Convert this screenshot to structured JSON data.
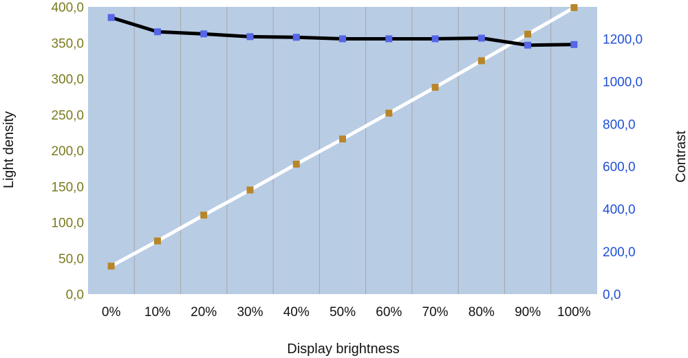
{
  "chart_data": {
    "type": "line",
    "xlabel": "Display brightness",
    "ylabel_left": "Light density",
    "ylabel_right": "Contrast",
    "categories": [
      "0%",
      "10%",
      "20%",
      "30%",
      "40%",
      "50%",
      "60%",
      "70%",
      "80%",
      "90%",
      "100%"
    ],
    "ylim_left": [
      0,
      400
    ],
    "ylim_right": [
      0,
      1350
    ],
    "yticks_left": [
      "0,0",
      "50,0",
      "100,0",
      "150,0",
      "200,0",
      "250,0",
      "300,0",
      "350,0",
      "400,0"
    ],
    "yticks_right": [
      "0,0",
      "200,0",
      "400,0",
      "600,0",
      "800,0",
      "1000,0",
      "1200,0"
    ],
    "grid": "vertical",
    "legend": "none",
    "series": [
      {
        "axis": "left",
        "line_color": "#ffffff",
        "marker_color": "#b8862a",
        "values": [
          39,
          74,
          110,
          145,
          181,
          216,
          252,
          288,
          325,
          362,
          399
        ]
      },
      {
        "axis": "right",
        "line_color": "#000000",
        "marker_color": "#5566e6",
        "values": [
          1300,
          1233,
          1223,
          1210,
          1207,
          1200,
          1200,
          1200,
          1203,
          1170,
          1173
        ]
      }
    ],
    "colors": {
      "plot_background": "#b8cce4",
      "gridline": "#a6a6a6",
      "left_axis_text": "#7a7a1e",
      "right_axis_text": "#1f4fd6"
    }
  }
}
